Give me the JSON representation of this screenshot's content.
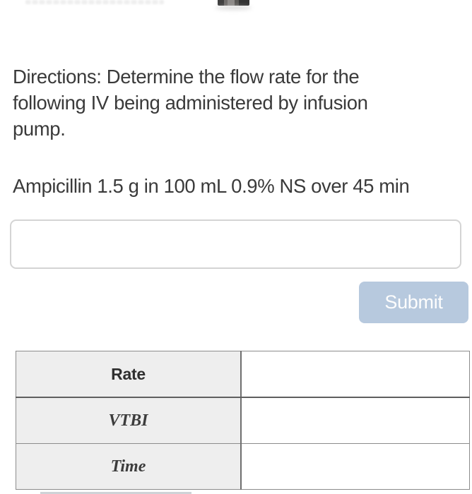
{
  "question": {
    "directions_lines": [
      "Directions: Determine the flow rate for the",
      "following IV being administered by infusion",
      "pump."
    ],
    "problem": "Ampicillin 1.5 g in 100 mL 0.9% NS over 45 min",
    "answer_input": {
      "value": "",
      "placeholder": ""
    },
    "submit_label": "Submit"
  },
  "pump_table": {
    "rows": [
      {
        "label": "Rate",
        "value": ""
      },
      {
        "label": "VTBI",
        "value": ""
      },
      {
        "label": "Time",
        "value": ""
      }
    ]
  },
  "colors": {
    "submit_background": "#b7c9de",
    "submit_text": "#fdfdfd",
    "table_label_background": "#eeeeee",
    "table_border": "#8c8c8c",
    "body_text": "#3a3a3a"
  }
}
